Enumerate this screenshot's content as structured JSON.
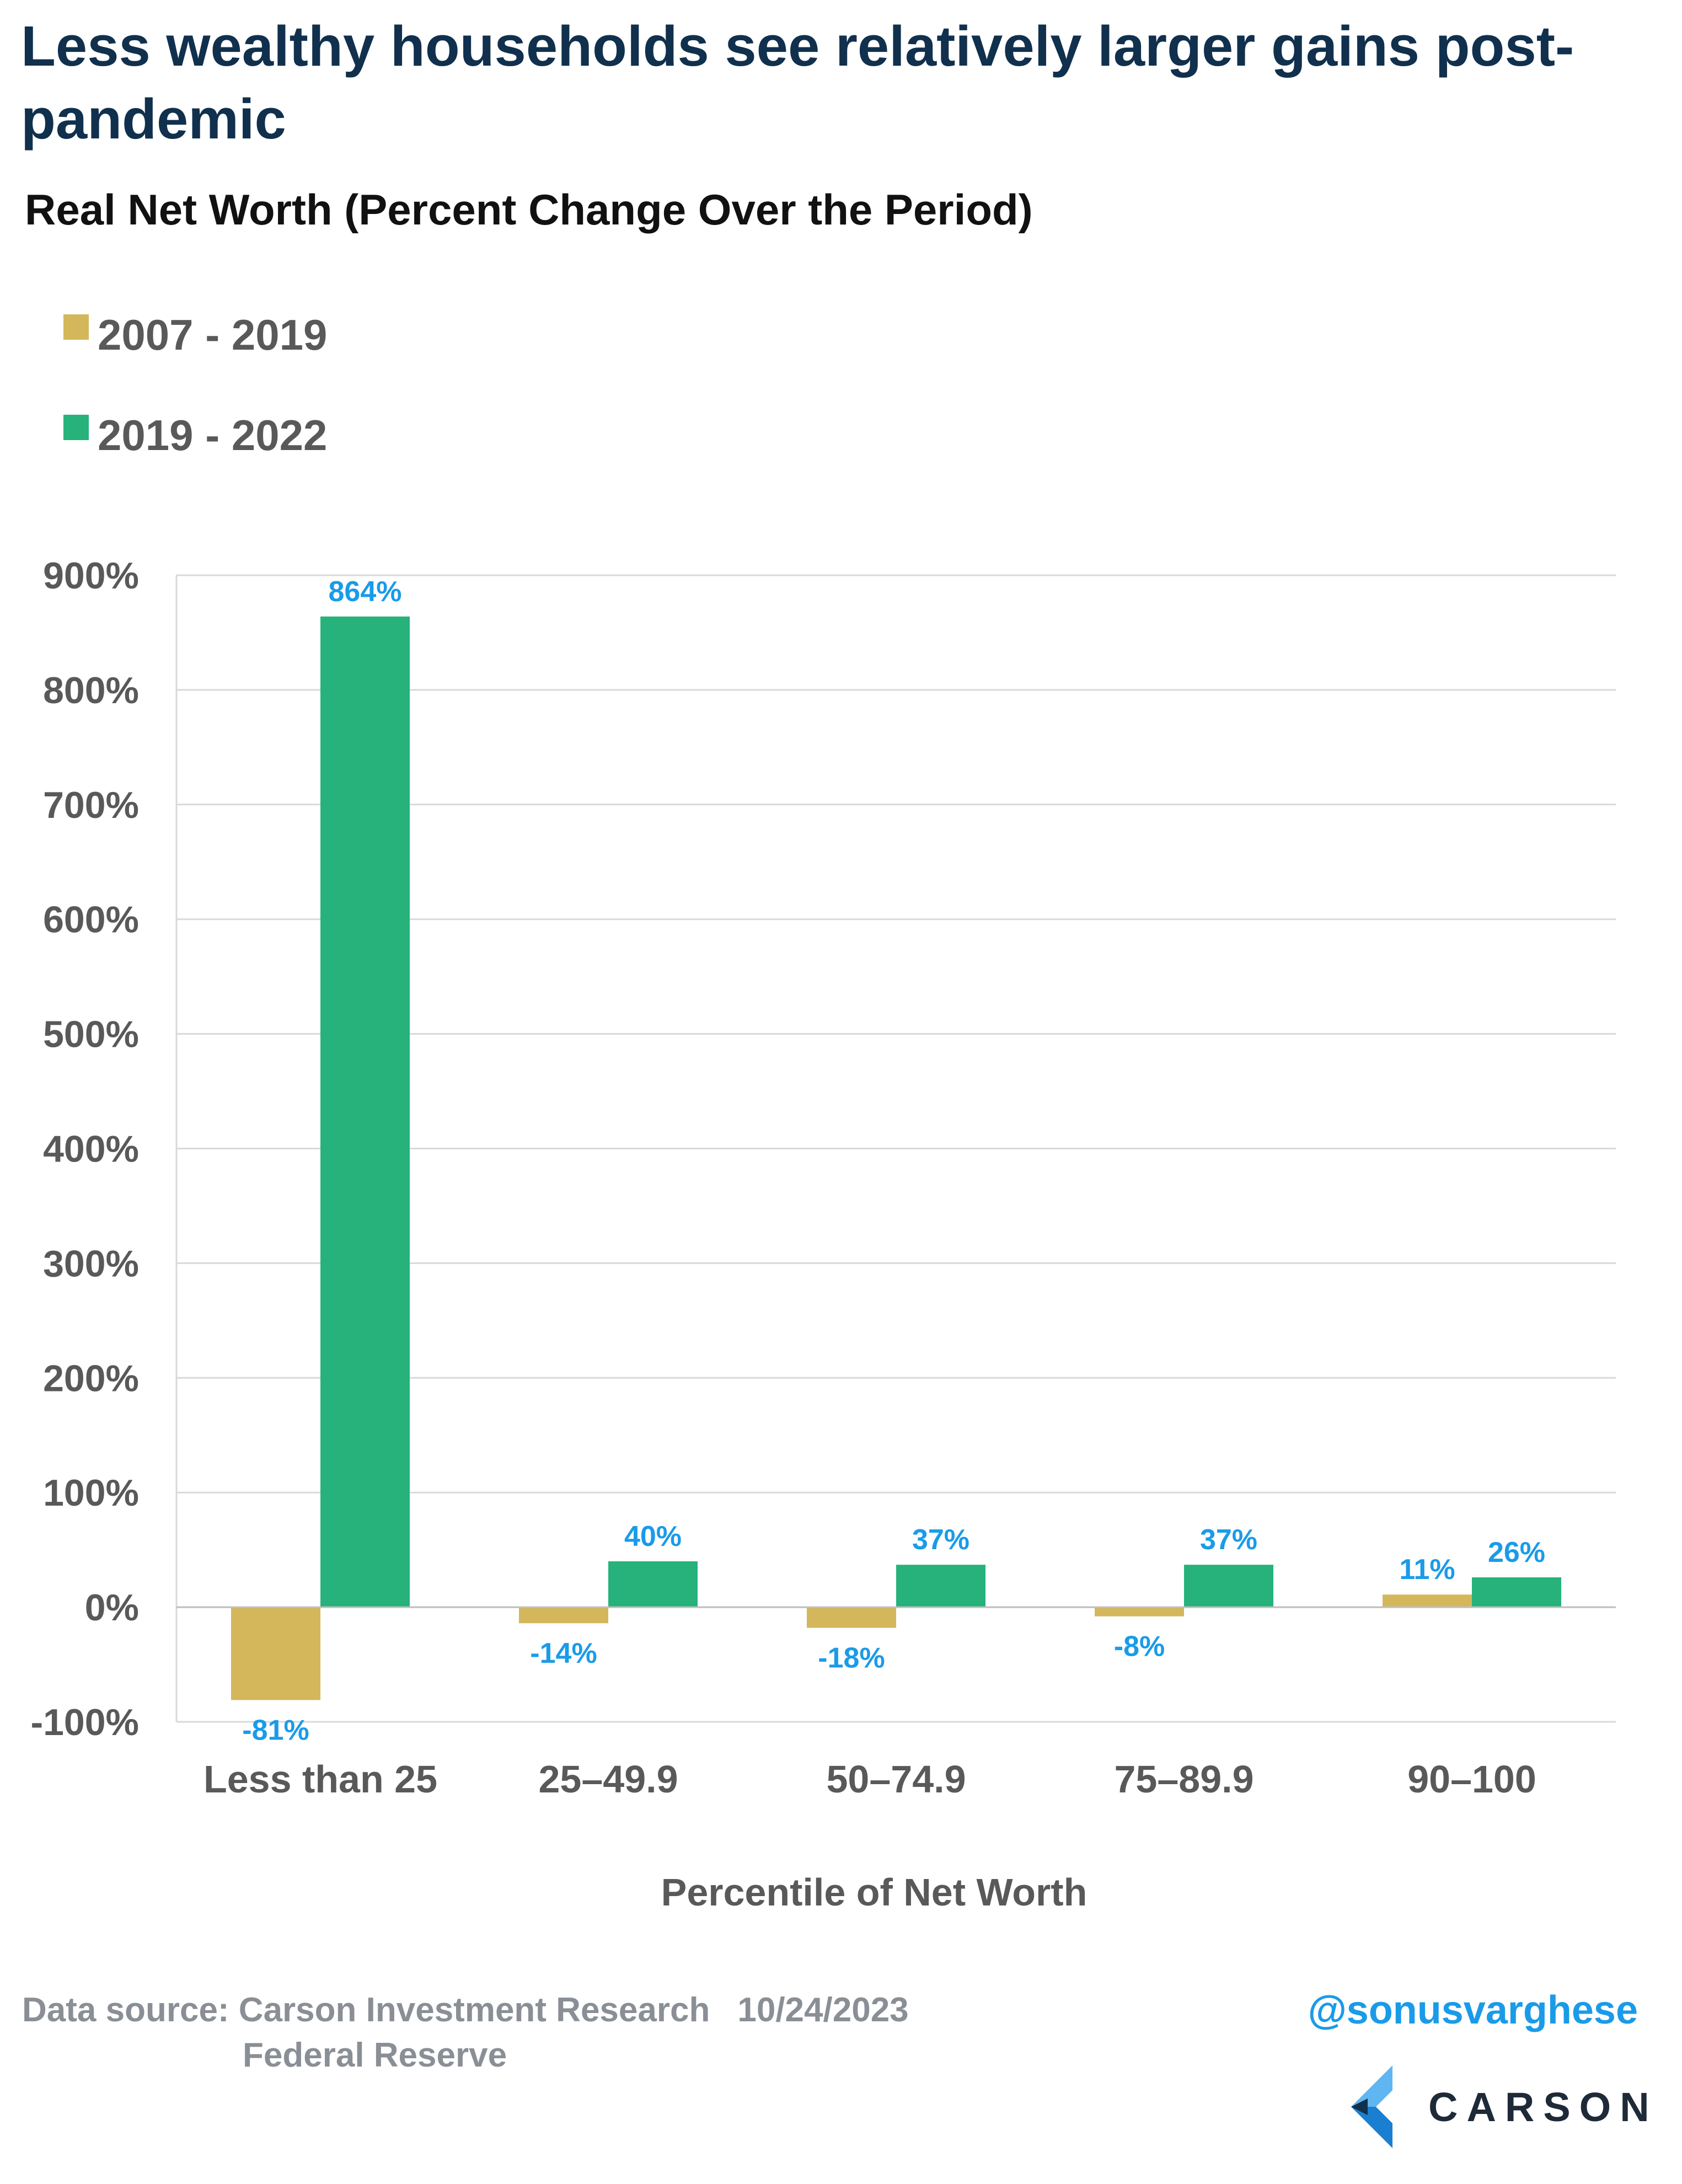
{
  "chart_data": {
    "type": "bar",
    "title": "Less wealthy households see relatively larger gains post-pandemic",
    "subtitle": "Real Net Worth (Percent Change Over the Period)",
    "xlabel": "Percentile of Net Worth",
    "ylabel": "",
    "categories": [
      "Less than 25",
      "25–49.9",
      "50–74.9",
      "75–89.9",
      "90–100"
    ],
    "series": [
      {
        "name": "2007 - 2019",
        "color": "#d4b75a",
        "values": [
          -81,
          -14,
          -18,
          -8,
          11
        ],
        "labels": [
          "-81%",
          "-14%",
          "-18%",
          "-8%",
          "11%"
        ]
      },
      {
        "name": "2019 - 2022",
        "color": "#26b27a",
        "values": [
          864,
          40,
          37,
          37,
          26
        ],
        "labels": [
          "864%",
          "40%",
          "37%",
          "37%",
          "26%"
        ]
      }
    ],
    "ylim": [
      -100,
      900
    ],
    "yticks": [
      -100,
      0,
      100,
      200,
      300,
      400,
      500,
      600,
      700,
      800,
      900
    ],
    "ytick_labels": [
      "-100%",
      "0%",
      "100%",
      "200%",
      "300%",
      "400%",
      "500%",
      "600%",
      "700%",
      "800%",
      "900%"
    ],
    "grid": true,
    "legend": "top-left",
    "data_label_color": "#1a9be9"
  },
  "footer": {
    "source_label": "Data source: Carson Investment Research",
    "date": "10/24/2023",
    "source_line2": "Federal Reserve",
    "handle": "@sonusvarghese",
    "brand": "CARSON"
  }
}
